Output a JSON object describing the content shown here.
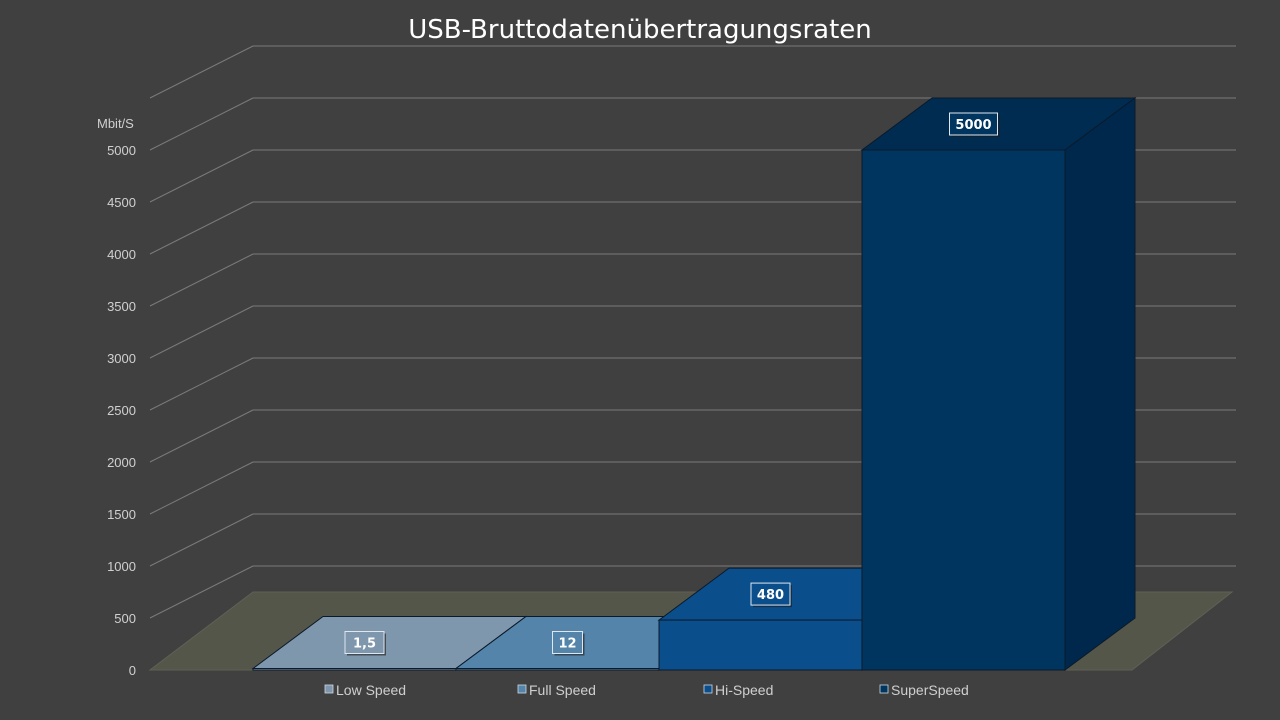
{
  "chart_data": {
    "type": "bar",
    "title": "USB-Bruttodatenübertragungsraten",
    "ylabel": "Mbit/S",
    "xlabel": "",
    "categories": [
      "Low Speed",
      "Full Speed",
      "Hi-Speed",
      "SuperSpeed"
    ],
    "values": [
      1.5,
      12,
      480,
      5000
    ],
    "value_labels": [
      "1,5",
      "12",
      "480",
      "5000"
    ],
    "ylim": [
      0,
      5500
    ],
    "yticks": [
      0,
      500,
      1000,
      1500,
      2000,
      2500,
      3000,
      3500,
      4000,
      4500,
      5000
    ],
    "grid": true,
    "legend_position": "bottom",
    "three_d": true,
    "colors": [
      "#7f97ad",
      "#5584aa",
      "#0a4e8c",
      "#003560"
    ]
  }
}
